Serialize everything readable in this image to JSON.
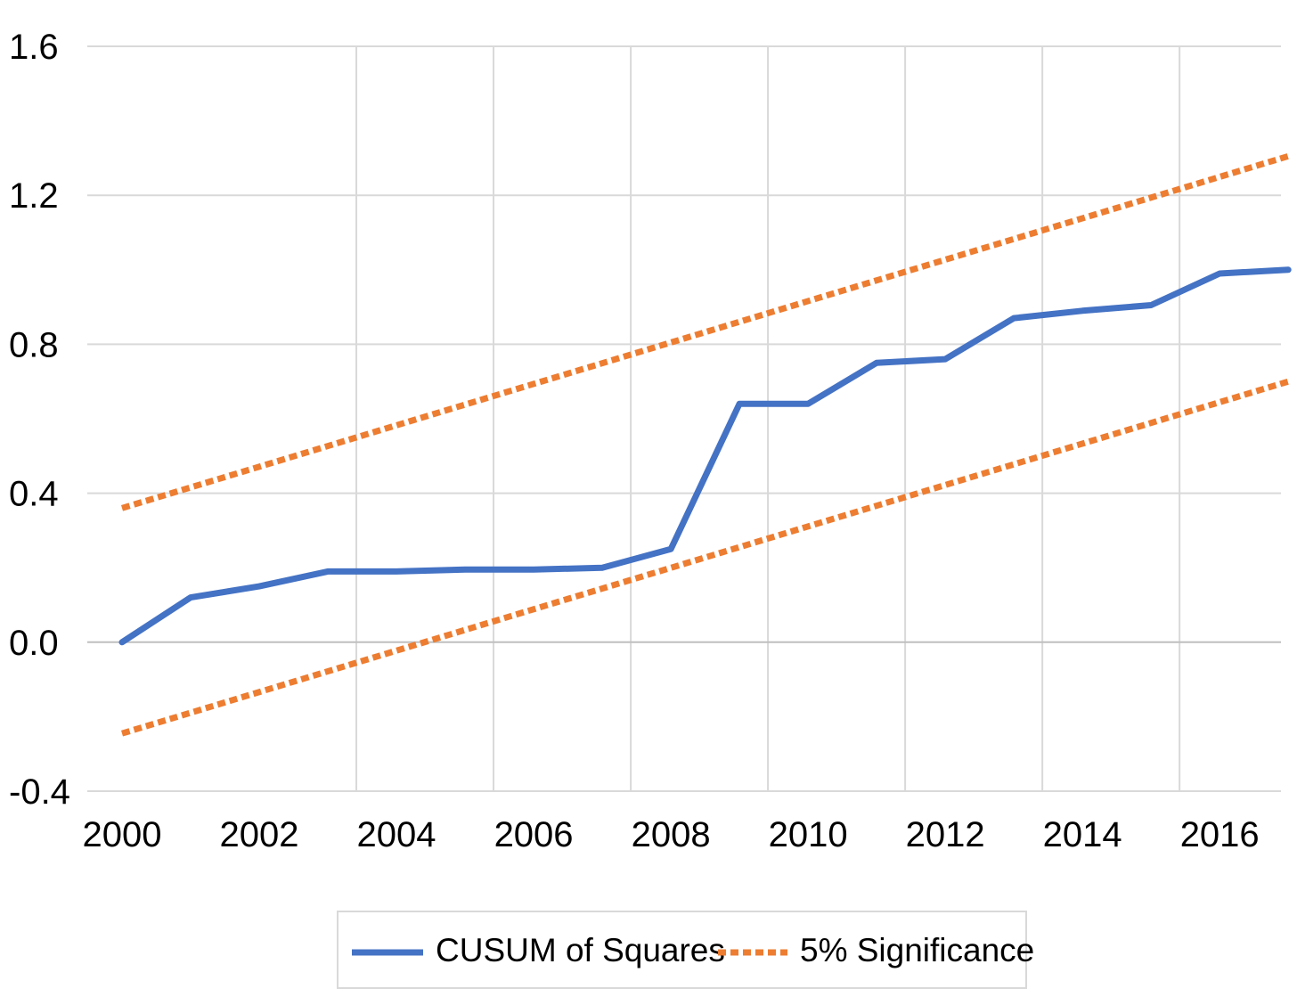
{
  "chart_data": {
    "type": "line",
    "title": "",
    "xlabel": "",
    "ylabel": "",
    "xlim": [
      2000,
      2017.4
    ],
    "ylim": [
      -0.4,
      1.6
    ],
    "y_ticks": [
      "-0.4",
      "0.0",
      "0.4",
      "0.8",
      "1.2",
      "1.6"
    ],
    "x_ticks": [
      "2000",
      "2002",
      "2004",
      "2006",
      "2008",
      "2010",
      "2012",
      "2014",
      "2016"
    ],
    "grid": true,
    "legend_position": "bottom",
    "series": [
      {
        "name": "CUSUM of Squares",
        "style": "solid",
        "color": "#4472C4",
        "x": [
          2000.0,
          2001.0,
          2002.0,
          2003.0,
          2004.0,
          2005.0,
          2006.0,
          2007.0,
          2008.0,
          2009.0,
          2010.0,
          2011.0,
          2012.0,
          2013.0,
          2014.0,
          2015.0,
          2016.0,
          2017.0
        ],
        "values": [
          0.0,
          0.12,
          0.15,
          0.19,
          0.19,
          0.195,
          0.195,
          0.2,
          0.25,
          0.64,
          0.64,
          0.75,
          0.76,
          0.87,
          0.89,
          0.905,
          0.99,
          1.0
        ]
      },
      {
        "name": "5% Significance",
        "style": "dashed",
        "color": "#ED7D31",
        "x": [
          2000.0,
          2017.0
        ],
        "values": [
          0.36,
          1.305
        ]
      },
      {
        "name": "5% Significance",
        "style": "dashed",
        "color": "#ED7D31",
        "show_in_legend": false,
        "x": [
          2000.0,
          2017.0
        ],
        "values": [
          -0.245,
          0.7
        ]
      }
    ]
  }
}
